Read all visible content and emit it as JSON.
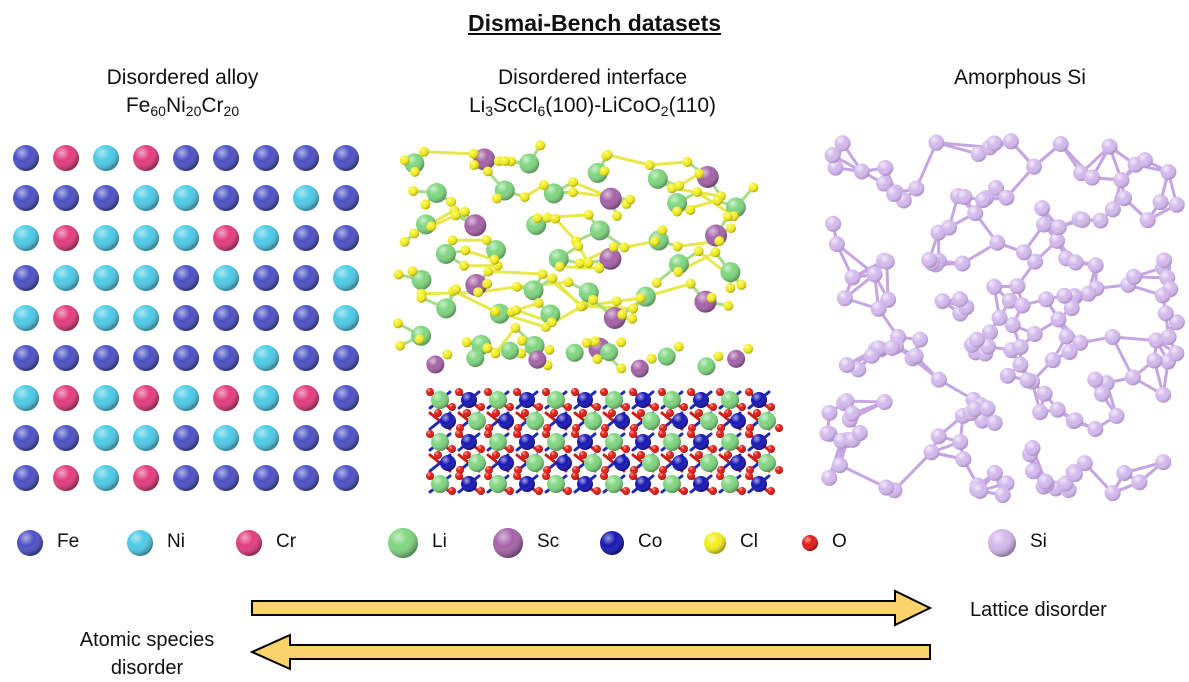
{
  "title": "Dismai-Bench datasets",
  "panels": {
    "alloy": {
      "title": "Disordered alloy",
      "formula": [
        [
          "Fe",
          "60"
        ],
        [
          "Ni",
          "20"
        ],
        [
          "Cr",
          "20"
        ]
      ],
      "grid": [
        [
          "Fe",
          "Cr",
          "Ni",
          "Cr",
          "Fe",
          "Fe",
          "Fe",
          "Fe",
          "Fe"
        ],
        [
          "Fe",
          "Fe",
          "Fe",
          "Ni",
          "Ni",
          "Fe",
          "Fe",
          "Ni",
          "Fe"
        ],
        [
          "Ni",
          "Cr",
          "Ni",
          "Ni",
          "Ni",
          "Cr",
          "Ni",
          "Fe",
          "Fe"
        ],
        [
          "Fe",
          "Ni",
          "Ni",
          "Ni",
          "Fe",
          "Ni",
          "Fe",
          "Fe",
          "Ni"
        ],
        [
          "Ni",
          "Cr",
          "Ni",
          "Ni",
          "Fe",
          "Fe",
          "Fe",
          "Fe",
          "Ni"
        ],
        [
          "Fe",
          "Fe",
          "Fe",
          "Fe",
          "Fe",
          "Fe",
          "Ni",
          "Fe",
          "Fe"
        ],
        [
          "Ni",
          "Cr",
          "Ni",
          "Cr",
          "Ni",
          "Cr",
          "Ni",
          "Cr",
          "Fe"
        ],
        [
          "Fe",
          "Fe",
          "Ni",
          "Ni",
          "Fe",
          "Ni",
          "Ni",
          "Fe",
          "Fe"
        ],
        [
          "Fe",
          "Cr",
          "Ni",
          "Cr",
          "Fe",
          "Fe",
          "Fe",
          "Fe",
          "Fe"
        ]
      ]
    },
    "interface": {
      "title": "Disordered interface",
      "formula": [
        [
          "Li",
          ""
        ],
        [
          "3",
          "sub"
        ],
        [
          "ScCl",
          ""
        ],
        [
          "6",
          "sub"
        ],
        [
          "(100)-LiCoO",
          ""
        ],
        [
          "2",
          "sub"
        ],
        [
          "(110)",
          ""
        ]
      ]
    },
    "amorphous": {
      "title": "Amorphous Si"
    }
  },
  "legend": [
    {
      "symbol": "Fe",
      "label": "Fe",
      "color": "#4b4fc4"
    },
    {
      "symbol": "Ni",
      "label": "Ni",
      "color": "#4cc9e6"
    },
    {
      "symbol": "Cr",
      "label": "Cr",
      "color": "#e23b7d"
    },
    {
      "symbol": "Li",
      "label": "Li",
      "color": "#7fd67f"
    },
    {
      "symbol": "Sc",
      "label": "Sc",
      "color": "#a562a8"
    },
    {
      "symbol": "Co",
      "label": "Co",
      "color": "#1515b5"
    },
    {
      "symbol": "Cl",
      "label": "Cl",
      "color": "#f3ee1c"
    },
    {
      "symbol": "O",
      "label": "O",
      "color": "#e01a12"
    },
    {
      "symbol": "Si",
      "label": "Si",
      "color": "#d2b8ec"
    }
  ],
  "arrows": {
    "lattice": "Lattice disorder",
    "species": "Atomic species\ndisorder",
    "fill": "#fcd26a"
  }
}
